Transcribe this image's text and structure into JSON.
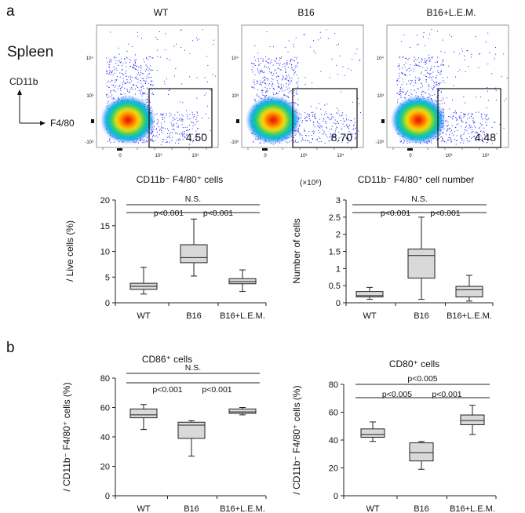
{
  "panel_a_label": "a",
  "panel_b_label": "b",
  "flow": {
    "tissue_label": "Spleen",
    "y_marker": "CD11b",
    "x_marker": "F4/80",
    "tick_labels": {
      "e4": "10⁴",
      "e3": "10³",
      "zero": "0",
      "neg3": "-10³"
    },
    "panels": [
      {
        "title": "WT",
        "gate_value": "4.50"
      },
      {
        "title": "B16",
        "gate_value": "8.70"
      },
      {
        "title": "B16+L.E.M.",
        "gate_value": "4.48"
      }
    ]
  },
  "chart_data": [
    {
      "type": "box",
      "title": "CD11b⁻ F4/80⁺ cells",
      "ylabel": "/ Live cells (%)",
      "ylim": [
        0,
        20
      ],
      "yticks": [
        0,
        5,
        10,
        15,
        20
      ],
      "categories": [
        "WT",
        "B16",
        "B16+L.E.M."
      ],
      "boxes": [
        {
          "min": 1.7,
          "q1": 2.6,
          "median": 3.2,
          "q3": 3.8,
          "max": 6.9
        },
        {
          "min": 5.2,
          "q1": 7.8,
          "median": 8.8,
          "q3": 11.3,
          "max": 16.3
        },
        {
          "min": 2.2,
          "q1": 3.7,
          "median": 4.1,
          "q3": 4.7,
          "max": 6.4
        }
      ],
      "annotations": [
        {
          "from": 0,
          "to": 2,
          "level": 0,
          "label": "N.S."
        },
        {
          "from": 0,
          "to": 1,
          "level": 1,
          "label": "p<0.001"
        },
        {
          "from": 1,
          "to": 2,
          "level": 1,
          "label": "p<0.001"
        }
      ]
    },
    {
      "type": "box",
      "title": "CD11b⁻ F4/80⁺ cell number",
      "multiplier": "(×10⁶)",
      "ylabel": "Number of cells",
      "ylim": [
        0,
        3
      ],
      "yticks": [
        0,
        0.5,
        1,
        1.5,
        2,
        2.5,
        3
      ],
      "categories": [
        "WT",
        "B16",
        "B16+L.E.M."
      ],
      "boxes": [
        {
          "min": 0.1,
          "q1": 0.17,
          "median": 0.21,
          "q3": 0.33,
          "max": 0.45
        },
        {
          "min": 0.1,
          "q1": 0.72,
          "median": 1.38,
          "q3": 1.57,
          "max": 2.5
        },
        {
          "min": 0.05,
          "q1": 0.17,
          "median": 0.38,
          "q3": 0.48,
          "max": 0.8
        }
      ],
      "annotations": [
        {
          "from": 0,
          "to": 2,
          "level": 0,
          "label": "N.S."
        },
        {
          "from": 0,
          "to": 1,
          "level": 1,
          "label": "p<0.001"
        },
        {
          "from": 1,
          "to": 2,
          "level": 1,
          "label": "p<0.001"
        }
      ]
    },
    {
      "type": "box",
      "title": "CD86⁺ cells",
      "ylabel": "/ CD11b⁻ F4/80⁺ cells (%)",
      "ylim": [
        0,
        80
      ],
      "yticks": [
        0,
        20,
        40,
        60,
        80
      ],
      "categories": [
        "WT",
        "B16",
        "B16+L.E.M."
      ],
      "boxes": [
        {
          "min": 45,
          "q1": 53,
          "median": 55,
          "q3": 59,
          "max": 62
        },
        {
          "min": 27,
          "q1": 39,
          "median": 48,
          "q3": 50,
          "max": 51
        },
        {
          "min": 55,
          "q1": 56,
          "median": 57,
          "q3": 59,
          "max": 60
        }
      ],
      "annotations": [
        {
          "from": 0,
          "to": 2,
          "level": 0,
          "label": "N.S."
        },
        {
          "from": 0,
          "to": 1,
          "level": 1,
          "label": "p<0.001"
        },
        {
          "from": 1,
          "to": 2,
          "level": 1,
          "label": "p<0.001"
        }
      ]
    },
    {
      "type": "box",
      "title": "CD80⁺ cells",
      "ylabel": "/ CD11b⁻ F4/80⁺ cells (%)",
      "ylim": [
        0,
        80
      ],
      "yticks": [
        0,
        20,
        40,
        60,
        80
      ],
      "categories": [
        "WT",
        "B16",
        "B16+L.E.M."
      ],
      "boxes": [
        {
          "min": 39,
          "q1": 42,
          "median": 44,
          "q3": 48,
          "max": 53
        },
        {
          "min": 19,
          "q1": 25,
          "median": 31,
          "q3": 38,
          "max": 39
        },
        {
          "min": 44,
          "q1": 51,
          "median": 54,
          "q3": 58,
          "max": 65
        }
      ],
      "annotations": [
        {
          "from": 0,
          "to": 2,
          "level": 0,
          "label": "p<0.005"
        },
        {
          "from": 0,
          "to": 1,
          "level": 1,
          "label": "p<0.005"
        },
        {
          "from": 1,
          "to": 2,
          "level": 1,
          "label": "p<0.001"
        }
      ]
    }
  ]
}
